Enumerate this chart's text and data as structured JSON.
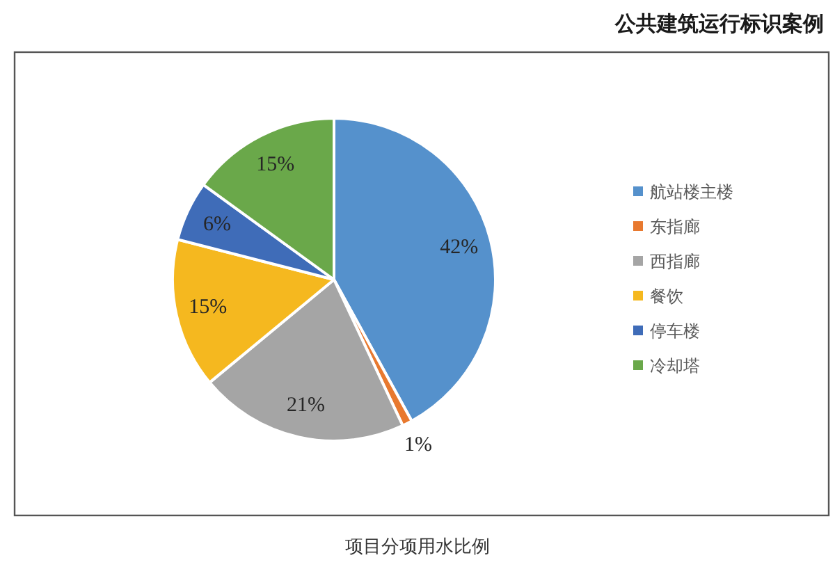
{
  "chart_data": {
    "type": "pie",
    "title": "项目分项用水比例",
    "annotations": [
      "公共建筑运行标识案例"
    ],
    "categories": [
      "航站楼主楼",
      "东指廊",
      "西指廊",
      "餐饮",
      "停车楼",
      "冷却塔"
    ],
    "values": [
      42,
      1,
      21,
      15,
      6,
      15
    ],
    "colors": [
      "#5591cc",
      "#e8792f",
      "#a5a5a5",
      "#f5b81f",
      "#3f6cb8",
      "#6aa84a"
    ],
    "value_labels": [
      "42%",
      "1%",
      "21%",
      "15%",
      "6%",
      "15%"
    ],
    "legend": "right"
  }
}
